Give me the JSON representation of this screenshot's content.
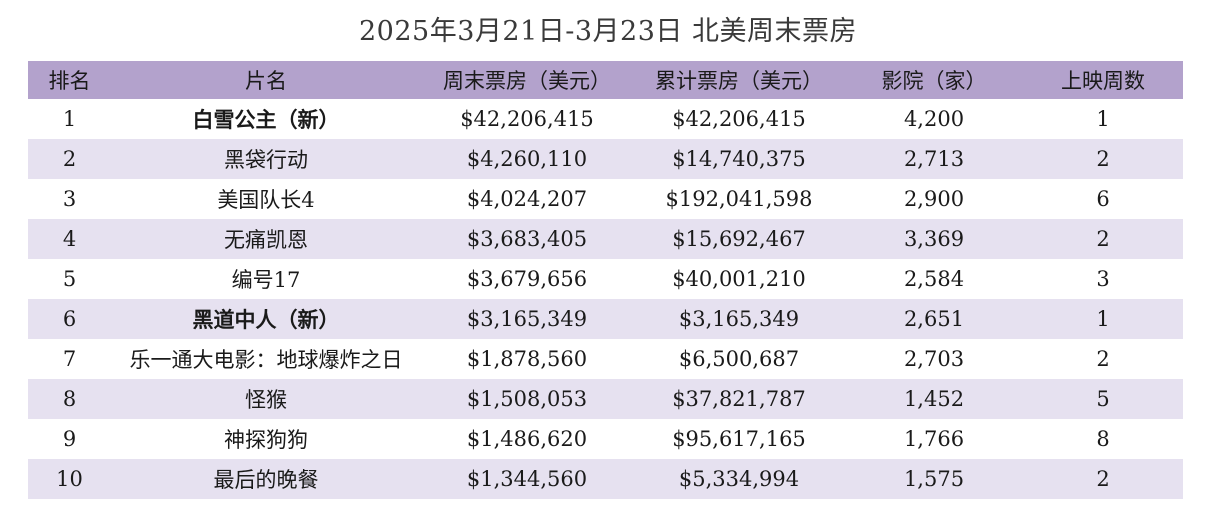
{
  "title": "2025年3月21日-3月23日  北美周末票房",
  "columns": {
    "rank": "排名",
    "film": "片名",
    "weekend_gross": "周末票房（美元）",
    "total_gross": "累计票房（美元）",
    "theaters": "影院（家）",
    "weeks": "上映周数"
  },
  "rows": [
    {
      "rank": "1",
      "film": "白雪公主（新）",
      "is_new": true,
      "weekend_gross": "$42,206,415",
      "total_gross": "$42,206,415",
      "theaters": "4,200",
      "weeks": "1"
    },
    {
      "rank": "2",
      "film": "黑袋行动",
      "is_new": false,
      "weekend_gross": "$4,260,110",
      "total_gross": "$14,740,375",
      "theaters": "2,713",
      "weeks": "2"
    },
    {
      "rank": "3",
      "film": "美国队长4",
      "is_new": false,
      "weekend_gross": "$4,024,207",
      "total_gross": "$192,041,598",
      "theaters": "2,900",
      "weeks": "6"
    },
    {
      "rank": "4",
      "film": "无痛凯恩",
      "is_new": false,
      "weekend_gross": "$3,683,405",
      "total_gross": "$15,692,467",
      "theaters": "3,369",
      "weeks": "2"
    },
    {
      "rank": "5",
      "film": "编号17",
      "is_new": false,
      "weekend_gross": "$3,679,656",
      "total_gross": "$40,001,210",
      "theaters": "2,584",
      "weeks": "3"
    },
    {
      "rank": "6",
      "film": "黑道中人（新）",
      "is_new": true,
      "weekend_gross": "$3,165,349",
      "total_gross": "$3,165,349",
      "theaters": "2,651",
      "weeks": "1"
    },
    {
      "rank": "7",
      "film": "乐一通大电影：地球爆炸之日",
      "is_new": false,
      "weekend_gross": "$1,878,560",
      "total_gross": "$6,500,687",
      "theaters": "2,703",
      "weeks": "2"
    },
    {
      "rank": "8",
      "film": "怪猴",
      "is_new": false,
      "weekend_gross": "$1,508,053",
      "total_gross": "$37,821,787",
      "theaters": "1,452",
      "weeks": "5"
    },
    {
      "rank": "9",
      "film": "神探狗狗",
      "is_new": false,
      "weekend_gross": "$1,486,620",
      "total_gross": "$95,617,165",
      "theaters": "1,766",
      "weeks": "8"
    },
    {
      "rank": "10",
      "film": "最后的晚餐",
      "is_new": false,
      "weekend_gross": "$1,344,560",
      "total_gross": "$5,334,994",
      "theaters": "1,575",
      "weeks": "2"
    }
  ],
  "colors": {
    "header_bg": "#b3a2cc",
    "stripe_bg": "#e6e1f0",
    "row_bg": "#ffffff"
  }
}
